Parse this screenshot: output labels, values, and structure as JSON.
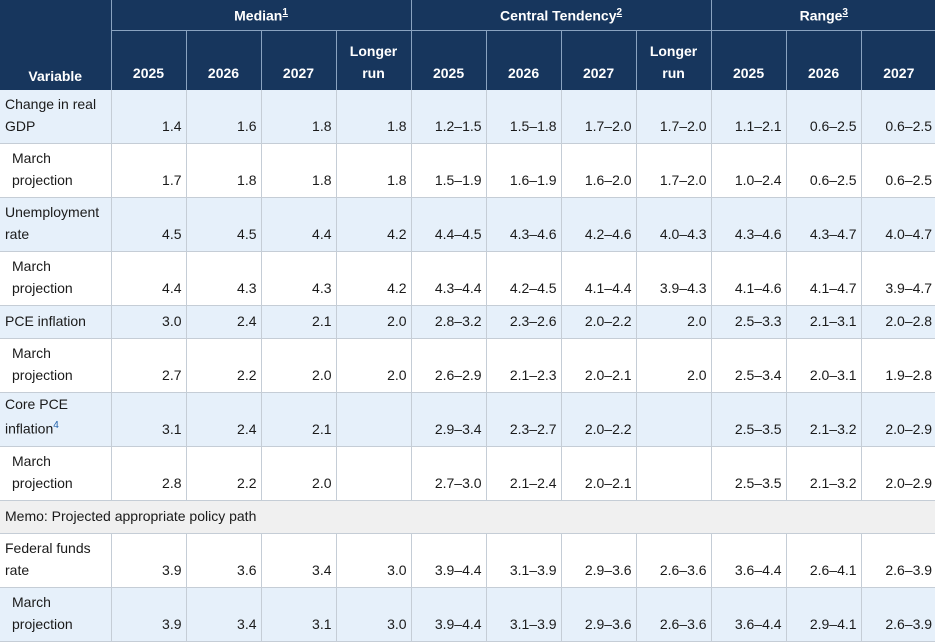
{
  "header": {
    "variable": "Variable",
    "groups": [
      {
        "label": "Median",
        "note": "1"
      },
      {
        "label": "Central Tendency",
        "note": "2"
      },
      {
        "label": "Range",
        "note": "3"
      }
    ],
    "years": [
      "2025",
      "2026",
      "2027"
    ],
    "longer_run_line1": "Longer",
    "longer_run_line2": "run"
  },
  "rows": [
    {
      "label": "Change in real GDP",
      "cells": [
        "1.4",
        "1.6",
        "1.8",
        "1.8",
        "1.2–1.5",
        "1.5–1.8",
        "1.7–2.0",
        "1.7–2.0",
        "1.1–2.1",
        "0.6–2.5",
        "0.6–2.5"
      ]
    },
    {
      "label": "March projection",
      "cells": [
        "1.7",
        "1.8",
        "1.8",
        "1.8",
        "1.5–1.9",
        "1.6–1.9",
        "1.6–2.0",
        "1.7–2.0",
        "1.0–2.4",
        "0.6–2.5",
        "0.6–2.5"
      ]
    },
    {
      "label": "Unemployment rate",
      "cells": [
        "4.5",
        "4.5",
        "4.4",
        "4.2",
        "4.4–4.5",
        "4.3–4.6",
        "4.2–4.6",
        "4.0–4.3",
        "4.3–4.6",
        "4.3–4.7",
        "4.0–4.7"
      ]
    },
    {
      "label": "March projection",
      "cells": [
        "4.4",
        "4.3",
        "4.3",
        "4.2",
        "4.3–4.4",
        "4.2–4.5",
        "4.1–4.4",
        "3.9–4.3",
        "4.1–4.6",
        "4.1–4.7",
        "3.9–4.7"
      ]
    },
    {
      "label": "PCE inflation",
      "cells": [
        "3.0",
        "2.4",
        "2.1",
        "2.0",
        "2.8–3.2",
        "2.3–2.6",
        "2.0–2.2",
        "2.0",
        "2.5–3.3",
        "2.1–3.1",
        "2.0–2.8"
      ]
    },
    {
      "label": "March projection",
      "cells": [
        "2.7",
        "2.2",
        "2.0",
        "2.0",
        "2.6–2.9",
        "2.1–2.3",
        "2.0–2.1",
        "2.0",
        "2.5–3.4",
        "2.0–3.1",
        "1.9–2.8"
      ]
    },
    {
      "label": "Core PCE inflation",
      "note": "4",
      "cells": [
        "3.1",
        "2.4",
        "2.1",
        "",
        "2.9–3.4",
        "2.3–2.7",
        "2.0–2.2",
        "",
        "2.5–3.5",
        "2.1–3.2",
        "2.0–2.9"
      ]
    },
    {
      "label": "March projection",
      "cells": [
        "2.8",
        "2.2",
        "2.0",
        "",
        "2.7–3.0",
        "2.1–2.4",
        "2.0–2.1",
        "",
        "2.5–3.5",
        "2.1–3.2",
        "2.0–2.9"
      ]
    },
    {
      "label": "Federal funds rate",
      "cells": [
        "3.9",
        "3.6",
        "3.4",
        "3.0",
        "3.9–4.4",
        "3.1–3.9",
        "2.9–3.6",
        "2.6–3.6",
        "3.6–4.4",
        "2.6–4.1",
        "2.6–3.9"
      ]
    },
    {
      "label": "March projection",
      "cells": [
        "3.9",
        "3.4",
        "3.1",
        "3.0",
        "3.9–4.4",
        "3.1–3.9",
        "2.9–3.6",
        "2.6–3.6",
        "3.6–4.4",
        "2.9–4.1",
        "2.6–3.9"
      ]
    }
  ],
  "memo": "Memo: Projected appropriate policy path"
}
